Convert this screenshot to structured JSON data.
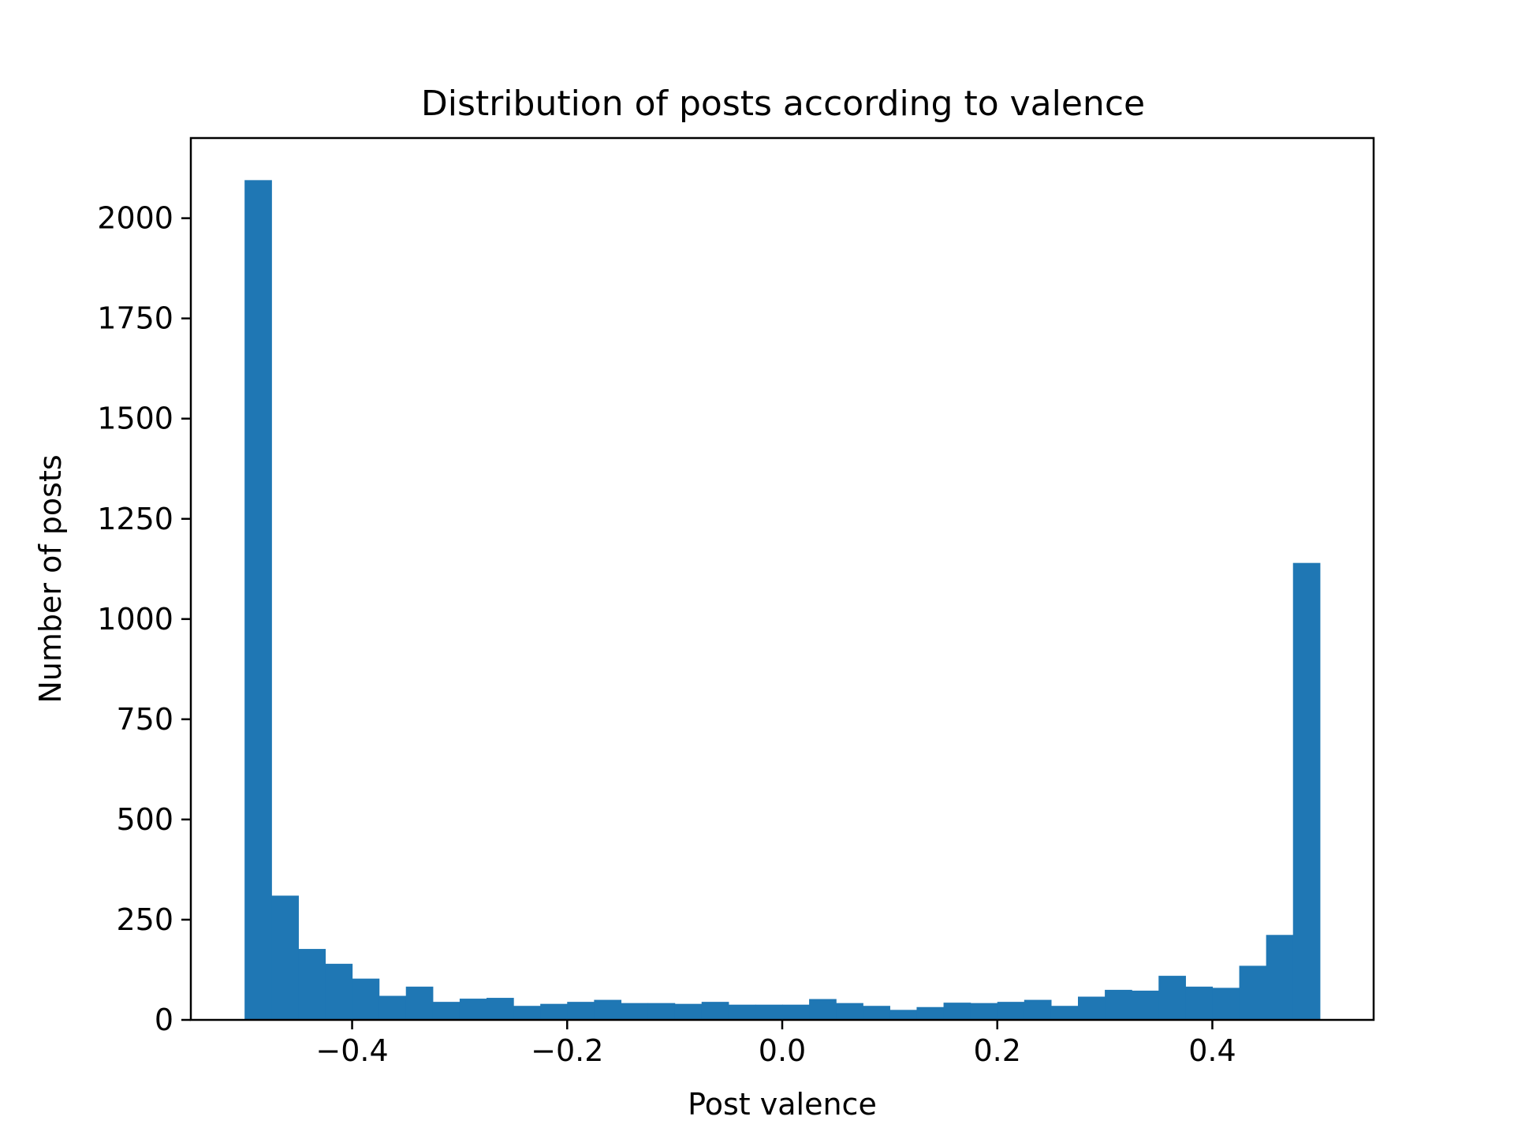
{
  "chart_data": {
    "type": "bar",
    "title": "Distribution of posts according to valence",
    "xlabel": "Post valence",
    "ylabel": "Number of posts",
    "bar_color": "#1f77b4",
    "xlim": [
      -0.55,
      0.55
    ],
    "ylim": [
      0,
      2200
    ],
    "x_ticks": [
      {
        "value": -0.4,
        "label": "−0.4"
      },
      {
        "value": -0.2,
        "label": "−0.2"
      },
      {
        "value": 0.0,
        "label": "0.0"
      },
      {
        "value": 0.2,
        "label": "0.2"
      },
      {
        "value": 0.4,
        "label": "0.4"
      }
    ],
    "y_ticks": [
      {
        "value": 0,
        "label": "0"
      },
      {
        "value": 250,
        "label": "250"
      },
      {
        "value": 500,
        "label": "500"
      },
      {
        "value": 750,
        "label": "750"
      },
      {
        "value": 1000,
        "label": "1000"
      },
      {
        "value": 1250,
        "label": "1250"
      },
      {
        "value": 1500,
        "label": "1500"
      },
      {
        "value": 1750,
        "label": "1750"
      },
      {
        "value": 2000,
        "label": "2000"
      }
    ],
    "grid": false,
    "bin_range": [
      -0.5,
      0.5
    ],
    "bin_width": 0.025,
    "counts": [
      2095,
      310,
      177,
      140,
      103,
      60,
      83,
      45,
      53,
      55,
      35,
      40,
      45,
      50,
      42,
      42,
      40,
      45,
      38,
      38,
      38,
      52,
      42,
      35,
      25,
      32,
      43,
      42,
      45,
      50,
      35,
      58,
      75,
      73,
      110,
      83,
      80,
      135,
      212,
      1140
    ]
  }
}
